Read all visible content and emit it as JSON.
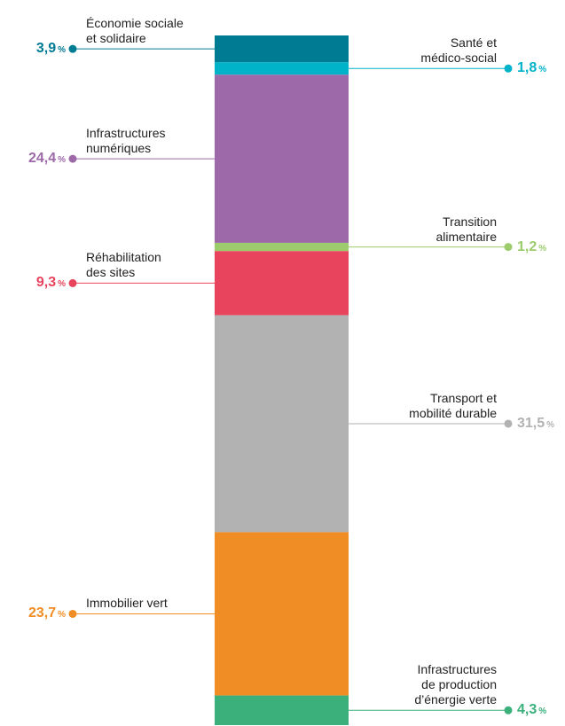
{
  "chart_data": {
    "type": "stacked_bar",
    "unit": "%",
    "series": [
      {
        "name": "Économie sociale\net solidaire",
        "color": "#007b94",
        "values": [
          3.9
        ],
        "value_labels": [
          "3,9"
        ]
      },
      {
        "name": "Santé et\nmédico-social",
        "color": "#00b3c9",
        "values": [
          1.8
        ],
        "value_labels": [
          "1,8"
        ]
      },
      {
        "name": "Infrastructures\nnumériques",
        "color": "#9d69a9",
        "values": [
          24.4
        ],
        "value_labels": [
          "24,4"
        ]
      },
      {
        "name": "Transition\nalimentaire",
        "color": "#9ccc6c",
        "values": [
          1.2
        ],
        "value_labels": [
          "1,2"
        ]
      },
      {
        "name": "Réhabilitation\ndes sites",
        "color": "#e8445d",
        "values": [
          9.3
        ],
        "value_labels": [
          "9,3"
        ]
      },
      {
        "name": "Transport et\nmobilité durable",
        "color": "#b2b2b2",
        "values": [
          31.5
        ],
        "value_labels": [
          "31,5"
        ]
      },
      {
        "name": "Immobilier vert",
        "color": "#f08d25",
        "values": [
          23.7
        ],
        "value_labels": [
          "23,7"
        ]
      },
      {
        "name": "Infrastructures\nde production\nd’énergie verte",
        "color": "#3bb07b",
        "values": [
          4.3
        ],
        "value_labels": [
          "4,3"
        ]
      }
    ]
  }
}
